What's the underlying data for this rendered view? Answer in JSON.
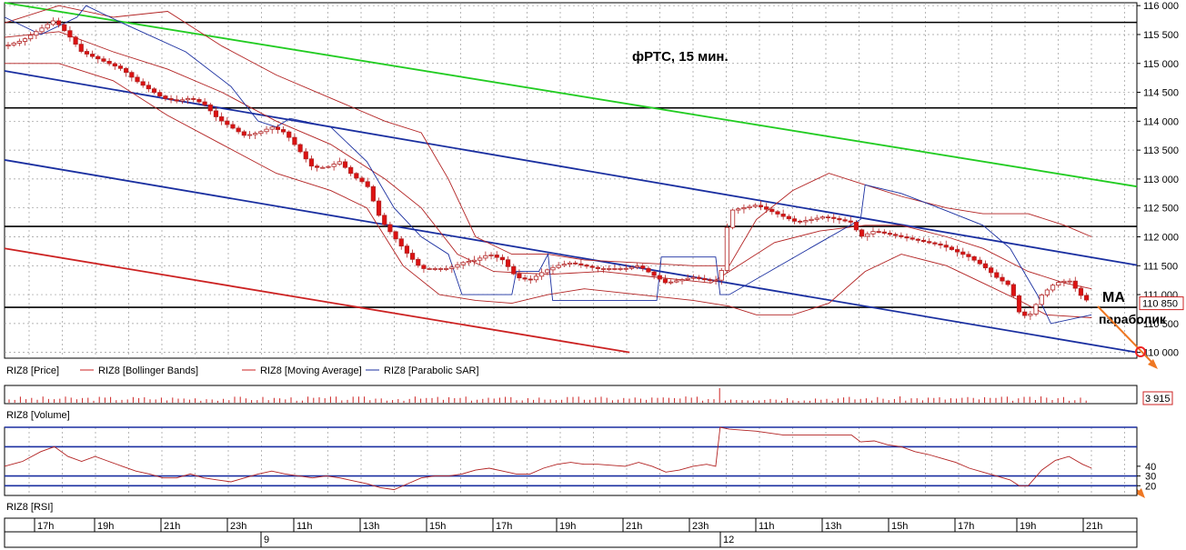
{
  "chart_data": {
    "type": "candlestick",
    "title": "фРТС, 15 мин.",
    "price_panel": {
      "ylim": [
        109900,
        116050
      ],
      "y_ticks": [
        "116 000",
        "115 500",
        "115 000",
        "114 500",
        "114 000",
        "113 500",
        "113 000",
        "112 500",
        "112 000",
        "111 500",
        "111 000",
        "110 500",
        "110 000"
      ],
      "y_tick_values": [
        116000,
        115500,
        115000,
        114500,
        114000,
        113500,
        113000,
        112500,
        112000,
        111500,
        111000,
        110500,
        110000
      ],
      "last_price_label": "110 850",
      "last_price": 110850,
      "horizontal_levels": [
        115710,
        114230,
        112180,
        110780
      ],
      "channel_lines": [
        {
          "color": "#22cc22",
          "from": [
            0,
            116050
          ],
          "to": [
            1250,
            112870
          ]
        },
        {
          "color": "#1a2fa0",
          "from": [
            0,
            114870
          ],
          "to": [
            1250,
            111510
          ]
        },
        {
          "color": "#1a2fa0",
          "from": [
            0,
            113330
          ],
          "to": [
            1250,
            110000
          ]
        },
        {
          "color": "#cc2222",
          "from": [
            0,
            111800
          ],
          "to": [
            690,
            110000
          ]
        }
      ],
      "legend": [
        {
          "label": "RIZ8 [Price]",
          "color": "#cc2222"
        },
        {
          "label": "RIZ8 [Bollinger Bands]",
          "color": "#cc2222"
        },
        {
          "label": "RIZ8 [Moving Average]",
          "color": "#cc2222"
        },
        {
          "label": "RIZ8 [Parabolic SAR]",
          "color": "#1a2fa0"
        }
      ],
      "annotations": [
        "MA",
        "параболик"
      ],
      "close_path": [
        [
          0,
          115300
        ],
        [
          20,
          115400
        ],
        [
          40,
          115600
        ],
        [
          55,
          115750
        ],
        [
          70,
          115500
        ],
        [
          85,
          115200
        ],
        [
          100,
          115100
        ],
        [
          115,
          115000
        ],
        [
          130,
          114900
        ],
        [
          145,
          114700
        ],
        [
          160,
          114550
        ],
        [
          175,
          114400
        ],
        [
          190,
          114350
        ],
        [
          205,
          114400
        ],
        [
          220,
          114300
        ],
        [
          235,
          114050
        ],
        [
          250,
          113900
        ],
        [
          265,
          113750
        ],
        [
          280,
          113800
        ],
        [
          295,
          113900
        ],
        [
          310,
          113800
        ],
        [
          325,
          113500
        ],
        [
          340,
          113200
        ],
        [
          355,
          113200
        ],
        [
          370,
          113300
        ],
        [
          385,
          113050
        ],
        [
          400,
          112900
        ],
        [
          415,
          112300
        ],
        [
          430,
          112000
        ],
        [
          445,
          111700
        ],
        [
          460,
          111450
        ],
        [
          475,
          111450
        ],
        [
          490,
          111450
        ],
        [
          505,
          111550
        ],
        [
          520,
          111600
        ],
        [
          535,
          111700
        ],
        [
          550,
          111600
        ],
        [
          565,
          111300
        ],
        [
          580,
          111250
        ],
        [
          595,
          111400
        ],
        [
          610,
          111500
        ],
        [
          625,
          111550
        ],
        [
          640,
          111500
        ],
        [
          655,
          111450
        ],
        [
          670,
          111450
        ],
        [
          685,
          111450
        ],
        [
          700,
          111500
        ],
        [
          715,
          111350
        ],
        [
          730,
          111200
        ],
        [
          745,
          111250
        ],
        [
          760,
          111300
        ],
        [
          775,
          111250
        ],
        [
          790,
          111250
        ],
        [
          800,
          112450
        ],
        [
          815,
          112500
        ],
        [
          830,
          112550
        ],
        [
          845,
          112450
        ],
        [
          860,
          112350
        ],
        [
          875,
          112250
        ],
        [
          890,
          112300
        ],
        [
          905,
          112350
        ],
        [
          920,
          112300
        ],
        [
          935,
          112250
        ],
        [
          945,
          112000
        ],
        [
          960,
          112100
        ],
        [
          975,
          112050
        ],
        [
          990,
          112000
        ],
        [
          1005,
          111950
        ],
        [
          1020,
          111900
        ],
        [
          1035,
          111850
        ],
        [
          1050,
          111750
        ],
        [
          1065,
          111650
        ],
        [
          1080,
          111500
        ],
        [
          1095,
          111300
        ],
        [
          1110,
          111150
        ],
        [
          1120,
          110700
        ],
        [
          1130,
          110600
        ],
        [
          1145,
          111000
        ],
        [
          1160,
          111200
        ],
        [
          1175,
          111250
        ],
        [
          1190,
          110950
        ],
        [
          1200,
          110850
        ]
      ],
      "bollinger_upper": [
        [
          0,
          115700
        ],
        [
          60,
          116000
        ],
        [
          120,
          115800
        ],
        [
          180,
          115900
        ],
        [
          240,
          115300
        ],
        [
          300,
          114800
        ],
        [
          360,
          114400
        ],
        [
          420,
          114000
        ],
        [
          460,
          113800
        ],
        [
          490,
          113000
        ],
        [
          520,
          112000
        ],
        [
          560,
          111700
        ],
        [
          600,
          111700
        ],
        [
          640,
          111600
        ],
        [
          700,
          111550
        ],
        [
          760,
          111500
        ],
        [
          800,
          111500
        ],
        [
          830,
          112300
        ],
        [
          870,
          112800
        ],
        [
          910,
          113100
        ],
        [
          950,
          112900
        ],
        [
          990,
          112700
        ],
        [
          1040,
          112500
        ],
        [
          1080,
          112400
        ],
        [
          1130,
          112400
        ],
        [
          1170,
          112200
        ],
        [
          1200,
          112000
        ]
      ],
      "bollinger_lower": [
        [
          0,
          115000
        ],
        [
          60,
          115000
        ],
        [
          120,
          114700
        ],
        [
          180,
          114100
        ],
        [
          240,
          113600
        ],
        [
          300,
          113100
        ],
        [
          360,
          112800
        ],
        [
          400,
          112500
        ],
        [
          440,
          111500
        ],
        [
          480,
          111000
        ],
        [
          520,
          110900
        ],
        [
          560,
          110850
        ],
        [
          600,
          111000
        ],
        [
          640,
          111100
        ],
        [
          700,
          111000
        ],
        [
          760,
          110900
        ],
        [
          800,
          110800
        ],
        [
          830,
          110650
        ],
        [
          870,
          110650
        ],
        [
          910,
          110850
        ],
        [
          950,
          111400
        ],
        [
          990,
          111700
        ],
        [
          1040,
          111500
        ],
        [
          1080,
          111200
        ],
        [
          1120,
          110900
        ],
        [
          1150,
          110650
        ],
        [
          1200,
          110600
        ]
      ],
      "moving_average": [
        [
          0,
          115450
        ],
        [
          60,
          115550
        ],
        [
          120,
          115200
        ],
        [
          180,
          114900
        ],
        [
          240,
          114500
        ],
        [
          300,
          114000
        ],
        [
          360,
          113600
        ],
        [
          420,
          113000
        ],
        [
          460,
          112500
        ],
        [
          500,
          111700
        ],
        [
          540,
          111400
        ],
        [
          600,
          111350
        ],
        [
          660,
          111400
        ],
        [
          720,
          111300
        ],
        [
          780,
          111200
        ],
        [
          810,
          111500
        ],
        [
          850,
          111900
        ],
        [
          900,
          112100
        ],
        [
          950,
          112200
        ],
        [
          990,
          112200
        ],
        [
          1040,
          112000
        ],
        [
          1080,
          111800
        ],
        [
          1130,
          111400
        ],
        [
          1170,
          111200
        ],
        [
          1200,
          111100
        ]
      ],
      "parabolic_sar": [
        [
          0,
          115800
        ],
        [
          40,
          115500
        ],
        [
          80,
          115800
        ],
        [
          90,
          116000
        ],
        [
          130,
          115700
        ],
        [
          200,
          115200
        ],
        [
          250,
          114600
        ],
        [
          280,
          114000
        ],
        [
          300,
          113900
        ],
        [
          315,
          114050
        ],
        [
          360,
          113900
        ],
        [
          400,
          113300
        ],
        [
          430,
          112500
        ],
        [
          460,
          112000
        ],
        [
          490,
          111700
        ],
        [
          505,
          111000
        ],
        [
          560,
          111000
        ],
        [
          565,
          111400
        ],
        [
          590,
          111400
        ],
        [
          600,
          111700
        ],
        [
          605,
          110900
        ],
        [
          720,
          110900
        ],
        [
          725,
          111650
        ],
        [
          785,
          111650
        ],
        [
          790,
          111000
        ],
        [
          800,
          111000
        ],
        [
          900,
          111900
        ],
        [
          945,
          112300
        ],
        [
          950,
          112900
        ],
        [
          990,
          112750
        ],
        [
          1040,
          112450
        ],
        [
          1080,
          112200
        ],
        [
          1110,
          111800
        ],
        [
          1140,
          111000
        ],
        [
          1155,
          110500
        ],
        [
          1200,
          110650
        ]
      ]
    },
    "volume_panel": {
      "label": "RIZ8 [Volume]",
      "last_volume_label": "3 915",
      "last_volume": 3915,
      "ylim": [
        0,
        20000
      ]
    },
    "rsi_panel": {
      "label": "RIZ8 [RSI]",
      "ylim": [
        10,
        80
      ],
      "y_ticks": [
        "40",
        "30",
        "20"
      ],
      "y_tick_values": [
        40,
        30,
        20
      ],
      "levels": [
        80,
        60,
        30,
        20
      ],
      "rsi_path": [
        [
          0,
          40
        ],
        [
          20,
          45
        ],
        [
          40,
          55
        ],
        [
          55,
          60
        ],
        [
          70,
          50
        ],
        [
          85,
          45
        ],
        [
          100,
          50
        ],
        [
          115,
          45
        ],
        [
          130,
          40
        ],
        [
          145,
          35
        ],
        [
          160,
          32
        ],
        [
          175,
          28
        ],
        [
          190,
          28
        ],
        [
          205,
          32
        ],
        [
          220,
          28
        ],
        [
          235,
          26
        ],
        [
          250,
          24
        ],
        [
          265,
          28
        ],
        [
          280,
          32
        ],
        [
          295,
          35
        ],
        [
          310,
          32
        ],
        [
          325,
          30
        ],
        [
          340,
          28
        ],
        [
          355,
          30
        ],
        [
          370,
          28
        ],
        [
          385,
          25
        ],
        [
          400,
          22
        ],
        [
          415,
          18
        ],
        [
          430,
          16
        ],
        [
          445,
          22
        ],
        [
          460,
          28
        ],
        [
          475,
          30
        ],
        [
          490,
          30
        ],
        [
          505,
          32
        ],
        [
          520,
          36
        ],
        [
          535,
          38
        ],
        [
          550,
          35
        ],
        [
          565,
          32
        ],
        [
          580,
          32
        ],
        [
          595,
          38
        ],
        [
          610,
          42
        ],
        [
          625,
          44
        ],
        [
          640,
          42
        ],
        [
          655,
          42
        ],
        [
          670,
          41
        ],
        [
          685,
          40
        ],
        [
          700,
          44
        ],
        [
          715,
          40
        ],
        [
          730,
          34
        ],
        [
          745,
          36
        ],
        [
          760,
          40
        ],
        [
          775,
          42
        ],
        [
          785,
          40
        ],
        [
          790,
          80
        ],
        [
          800,
          78
        ],
        [
          830,
          76
        ],
        [
          860,
          72
        ],
        [
          900,
          72
        ],
        [
          935,
          72
        ],
        [
          945,
          65
        ],
        [
          960,
          66
        ],
        [
          975,
          62
        ],
        [
          990,
          60
        ],
        [
          1005,
          55
        ],
        [
          1020,
          52
        ],
        [
          1035,
          48
        ],
        [
          1050,
          44
        ],
        [
          1065,
          38
        ],
        [
          1080,
          34
        ],
        [
          1095,
          30
        ],
        [
          1110,
          26
        ],
        [
          1120,
          20
        ],
        [
          1130,
          20
        ],
        [
          1145,
          36
        ],
        [
          1160,
          46
        ],
        [
          1175,
          50
        ],
        [
          1190,
          42
        ],
        [
          1200,
          38
        ]
      ]
    },
    "time_axis": {
      "hour_labels": [
        "17h",
        "19h",
        "21h",
        "23h",
        "11h",
        "13h",
        "15h",
        "17h",
        "19h",
        "21h",
        "23h",
        "11h",
        "13h",
        "15h",
        "17h",
        "19h",
        "21h"
      ],
      "day_labels": [
        "9",
        "12"
      ]
    }
  }
}
